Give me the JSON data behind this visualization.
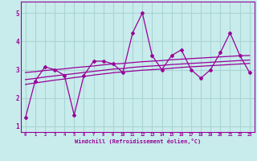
{
  "xlabel": "Windchill (Refroidissement éolien,°C)",
  "background_color": "#c8ecec",
  "grid_color": "#aad4d4",
  "line_color": "#990099",
  "xlim": [
    -0.5,
    23.5
  ],
  "ylim": [
    0.8,
    5.4
  ],
  "yticks": [
    1,
    2,
    3,
    4,
    5
  ],
  "xticks": [
    0,
    1,
    2,
    3,
    4,
    5,
    6,
    7,
    8,
    9,
    10,
    11,
    12,
    13,
    14,
    15,
    16,
    17,
    18,
    19,
    20,
    21,
    22,
    23
  ],
  "main_y": [
    1.3,
    2.6,
    3.1,
    3.0,
    2.8,
    1.4,
    2.8,
    3.3,
    3.3,
    3.2,
    2.9,
    4.3,
    5.0,
    3.5,
    3.0,
    3.5,
    3.7,
    3.0,
    2.7,
    3.0,
    3.6,
    4.3,
    3.5,
    2.9
  ],
  "trend1_y": [
    2.9,
    2.93,
    2.97,
    3.0,
    3.03,
    3.07,
    3.1,
    3.13,
    3.17,
    3.2,
    3.22,
    3.25,
    3.28,
    3.3,
    3.32,
    3.35,
    3.37,
    3.39,
    3.41,
    3.43,
    3.45,
    3.47,
    3.49,
    3.5
  ],
  "trend2_y": [
    2.65,
    2.69,
    2.74,
    2.78,
    2.82,
    2.86,
    2.9,
    2.94,
    2.98,
    3.02,
    3.04,
    3.08,
    3.11,
    3.13,
    3.15,
    3.18,
    3.2,
    3.22,
    3.24,
    3.26,
    3.28,
    3.3,
    3.32,
    3.34
  ],
  "trend3_y": [
    2.48,
    2.53,
    2.58,
    2.63,
    2.67,
    2.72,
    2.76,
    2.81,
    2.85,
    2.89,
    2.92,
    2.95,
    2.98,
    3.0,
    3.02,
    3.05,
    3.08,
    3.1,
    3.12,
    3.14,
    3.16,
    3.18,
    3.2,
    3.22
  ]
}
